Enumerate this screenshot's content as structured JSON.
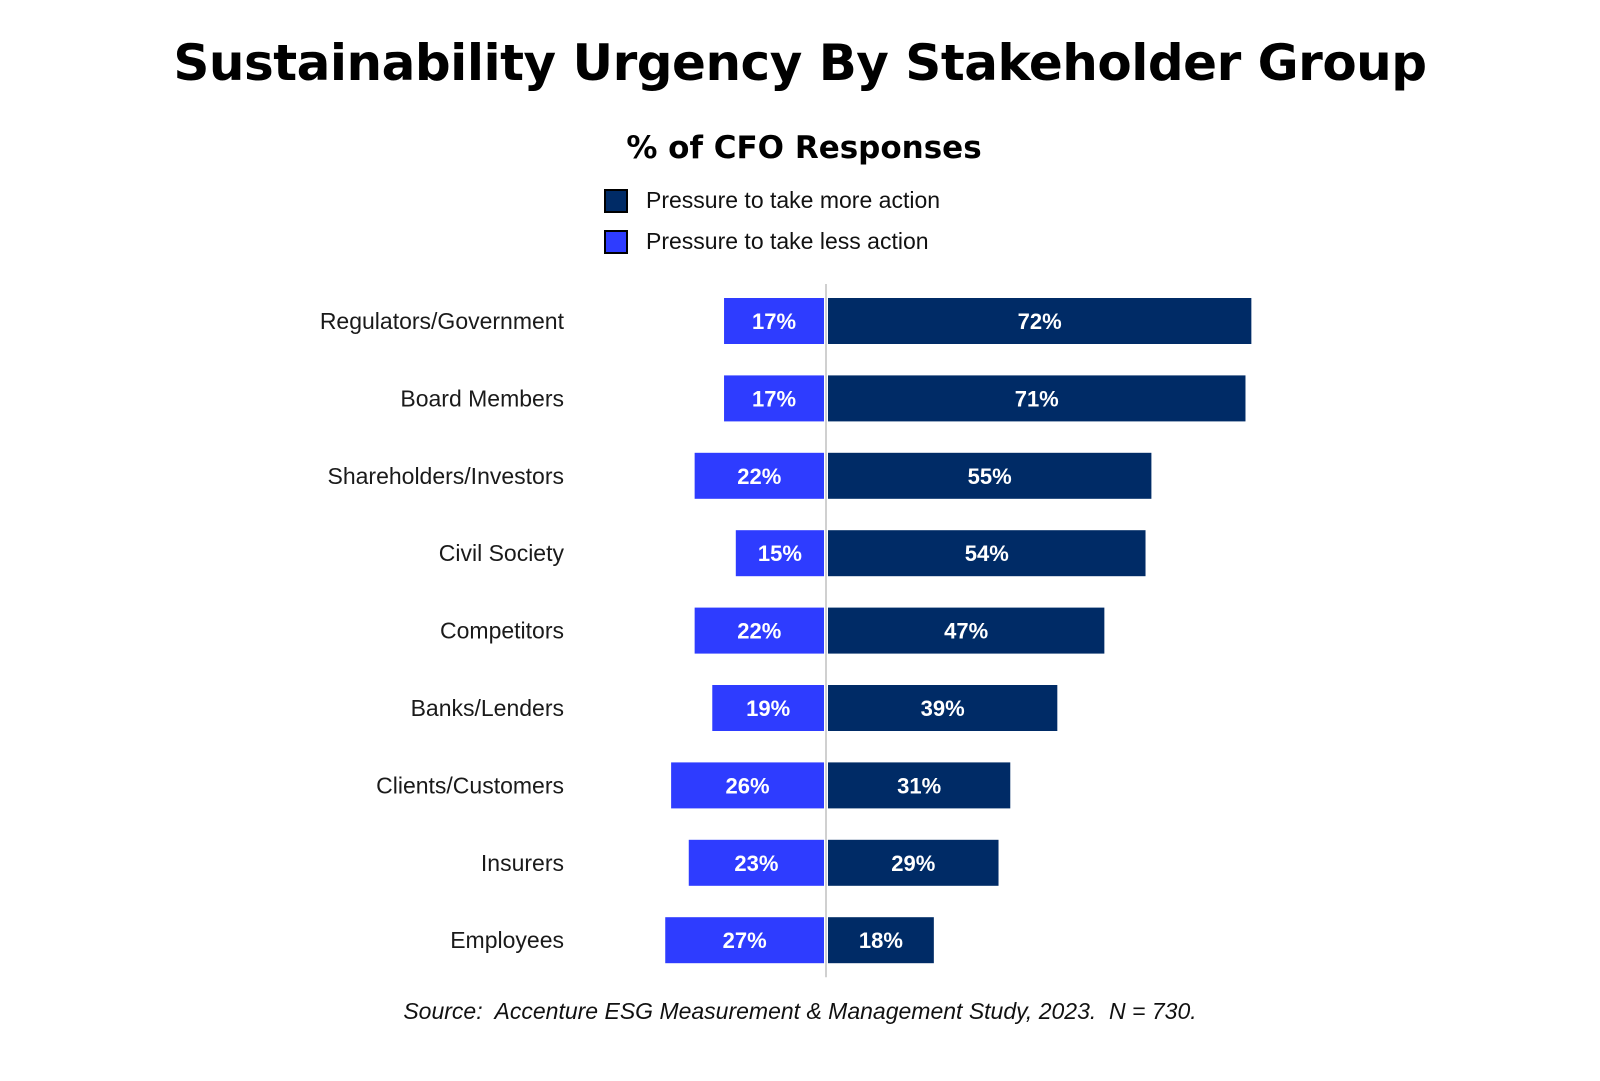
{
  "chart_data": {
    "type": "bar",
    "orientation": "horizontal-diverging",
    "title": "Sustainability Urgency By Stakeholder Group",
    "subtitle": "% of CFO Responses",
    "categories": [
      "Regulators/Government",
      "Board Members",
      "Shareholders/Investors",
      "Civil Society",
      "Competitors",
      "Banks/Lenders",
      "Clients/Customers",
      "Insurers",
      "Employees"
    ],
    "series": [
      {
        "name": "Pressure to take more action",
        "color": "#002B66",
        "direction": "right",
        "values": [
          72,
          71,
          55,
          54,
          47,
          39,
          31,
          29,
          18
        ],
        "labels": [
          "72%",
          "71%",
          "55%",
          "54%",
          "47%",
          "39%",
          "31%",
          "29%",
          "18%"
        ]
      },
      {
        "name": "Pressure to take less action",
        "color": "#2E3CFF",
        "direction": "left",
        "values": [
          17,
          17,
          22,
          15,
          22,
          19,
          26,
          23,
          27
        ],
        "labels": [
          "17%",
          "17%",
          "22%",
          "15%",
          "22%",
          "19%",
          "26%",
          "23%",
          "27%"
        ]
      }
    ],
    "legend": "top-center",
    "grid": false,
    "source": "Source:  Accenture ESG Measurement & Management Study, 2023.  N = 730."
  }
}
